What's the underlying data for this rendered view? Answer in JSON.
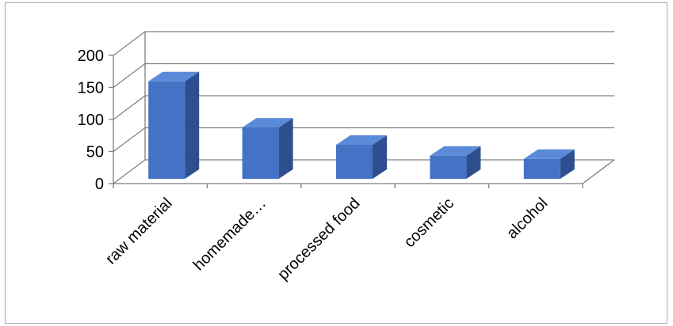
{
  "chart_data": {
    "type": "bar",
    "title": "",
    "xlabel": "",
    "ylabel": "",
    "categories": [
      "raw material",
      "homemade…",
      "processed food",
      "cosmetic",
      "alcohol"
    ],
    "series": [
      {
        "values": [
          162,
          90,
          63,
          46,
          41
        ]
      }
    ],
    "ylim": [
      0,
      200
    ],
    "yticks": [
      "0",
      "50",
      "100",
      "150",
      "200"
    ],
    "grid": true,
    "legend": "none",
    "style": "3d-column",
    "colors": {
      "bar_front": "#4472c4",
      "bar_top": "#5b8bd8",
      "bar_side": "#2e4f8f",
      "gridline": "#7f7f7f",
      "frame": "#a6a6a6"
    }
  }
}
